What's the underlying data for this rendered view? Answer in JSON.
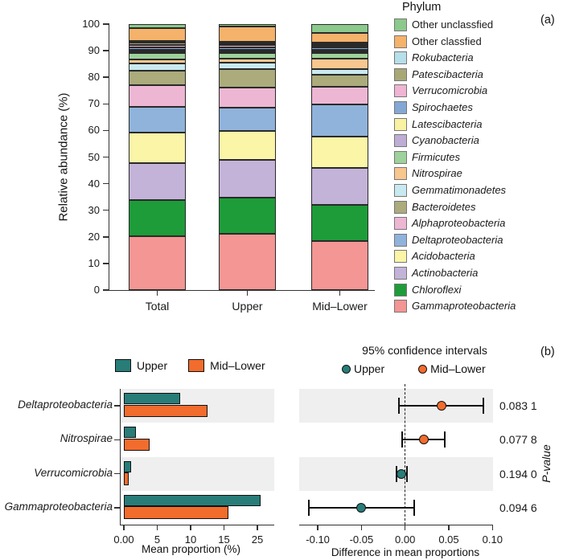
{
  "figure": {
    "panel_a_tag": "(a)",
    "panel_b_tag": "(b)"
  },
  "chart_data": [
    {
      "id": "relative_abundance_stacked",
      "type": "bar",
      "stacked": true,
      "orientation": "vertical",
      "ylabel": "Relative abundance (%)",
      "ylim": [
        0,
        100
      ],
      "yticks": [
        0,
        10,
        20,
        30,
        40,
        50,
        60,
        70,
        80,
        90,
        100
      ],
      "categories": [
        "Total",
        "Upper",
        "Mid–Lower"
      ],
      "legend_title": "Phylum",
      "legend_position": "right",
      "axis_color": "#333333",
      "series_bottom_to_top": [
        {
          "name": "Gammaproteobacteria",
          "color": "#f39694",
          "italic": true,
          "values": [
            20.0,
            21.0,
            18.0
          ]
        },
        {
          "name": "Chloroflexi",
          "color": "#1e9c39",
          "italic": true,
          "values": [
            13.5,
            13.5,
            13.5
          ]
        },
        {
          "name": "Actinobacteria",
          "color": "#c3b3d8",
          "italic": true,
          "values": [
            13.5,
            14.0,
            13.8
          ]
        },
        {
          "name": "Acidobacteria",
          "color": "#faf5a7",
          "italic": true,
          "values": [
            11.5,
            11.0,
            11.5
          ]
        },
        {
          "name": "Deltaproteobacteria",
          "color": "#8fb3db",
          "italic": true,
          "values": [
            9.5,
            8.5,
            12.0
          ]
        },
        {
          "name": "Alphaproteobacteria",
          "color": "#edb7d3",
          "italic": true,
          "values": [
            8.0,
            7.5,
            6.3
          ]
        },
        {
          "name": "Bacteroidetes",
          "color": "#abab7c",
          "italic": true,
          "values": [
            5.5,
            7.0,
            4.5
          ]
        },
        {
          "name": "Gemmatimonadetes",
          "color": "#c9e9f0",
          "italic": true,
          "values": [
            2.5,
            2.5,
            2.1
          ]
        },
        {
          "name": "Nitrospirae",
          "color": "#f8c68f",
          "italic": true,
          "values": [
            1.5,
            1.3,
            3.8
          ]
        },
        {
          "name": "Firmicutes",
          "color": "#9dd29c",
          "italic": true,
          "values": [
            2.4,
            2.3,
            2.2
          ]
        },
        {
          "name": "Cyanobacteria",
          "color": "#beadd5",
          "italic": true,
          "values": [
            0.7,
            0.6,
            0.6
          ]
        },
        {
          "name": "Latescibacteria",
          "color": "#f9f2a2",
          "italic": true,
          "values": [
            0.7,
            0.6,
            0.7
          ]
        },
        {
          "name": "Spirochaetes",
          "color": "#84a8d4",
          "italic": true,
          "values": [
            0.8,
            0.7,
            0.7
          ]
        },
        {
          "name": "Verrucomicrobia",
          "color": "#efb5d2",
          "italic": true,
          "values": [
            0.8,
            0.9,
            0.7
          ]
        },
        {
          "name": "Patescibacteria",
          "color": "#a8a877",
          "italic": true,
          "values": [
            0.8,
            0.7,
            0.6
          ]
        },
        {
          "name": "Rokubacteria",
          "color": "#b7dfe9",
          "italic": true,
          "values": [
            0.8,
            0.7,
            0.7
          ]
        },
        {
          "name": "Other classfied",
          "color": "#f5b26b",
          "italic": false,
          "values": [
            4.7,
            5.5,
            3.5
          ]
        },
        {
          "name": "Other unclassfied",
          "color": "#8cc98c",
          "italic": false,
          "values": [
            1.5,
            1.0,
            3.2
          ]
        }
      ]
    },
    {
      "id": "mean_proportion_comparison",
      "type": "bar",
      "orientation": "horizontal",
      "xlabel": "Mean proportion (%)",
      "xticks": [
        "0.00",
        "5",
        "10",
        "15",
        "25"
      ],
      "groups": [
        "Upper",
        "Mid–Lower"
      ],
      "group_colors": {
        "Upper": "#287d79",
        "Mid–Lower": "#f26c2d"
      },
      "stripe_color": "#efefef",
      "rows": [
        {
          "taxon": "Deltaproteobacteria",
          "upper": 8.4,
          "mid_lower": 12.5
        },
        {
          "taxon": "Nitrospirae",
          "upper": 1.8,
          "mid_lower": 3.9
        },
        {
          "taxon": "Verrucomicrobia",
          "upper": 1.1,
          "mid_lower": 0.7
        },
        {
          "taxon": "Gammaproteobacteria",
          "upper": 26.0,
          "mid_lower": 16.3
        }
      ]
    },
    {
      "id": "confidence_intervals",
      "type": "scatter",
      "title": "95% confidence intervals",
      "xlabel": "Difference in mean proportions",
      "right_axis_label": "P-value",
      "xticks": [
        "-0.10",
        "-0.05",
        "0.00",
        "0.05",
        "0.10"
      ],
      "xtick_values": [
        -0.1,
        -0.05,
        0.0,
        0.05,
        0.1
      ],
      "zero_line": true,
      "rows": [
        {
          "taxon": "Deltaproteobacteria",
          "group": "Mid–Lower",
          "diff": 0.042,
          "ci_low": -0.007,
          "ci_high": 0.09,
          "p_value": "0.083 1"
        },
        {
          "taxon": "Nitrospirae",
          "group": "Mid–Lower",
          "diff": 0.021,
          "ci_low": -0.003,
          "ci_high": 0.045,
          "p_value": "0.077 8"
        },
        {
          "taxon": "Verrucomicrobia",
          "group": "Upper",
          "diff": -0.004,
          "ci_low": -0.01,
          "ci_high": 0.002,
          "p_value": "0.194 0"
        },
        {
          "taxon": "Gammaproteobacteria",
          "group": "Upper",
          "diff": -0.05,
          "ci_low": -0.11,
          "ci_high": 0.01,
          "p_value": "0.094 6"
        }
      ]
    }
  ]
}
